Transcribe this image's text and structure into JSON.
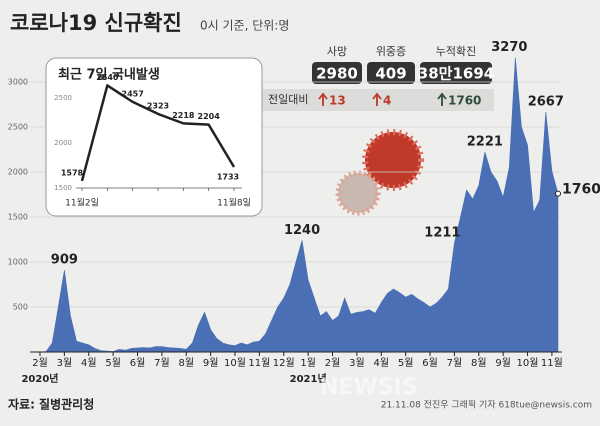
{
  "header": {
    "title": "코로나19 신규확진",
    "subtitle": "0시 기준, 단위:명"
  },
  "stats": {
    "row_label": "전일대비",
    "items": [
      {
        "label": "사망",
        "total": "2980",
        "change": "13"
      },
      {
        "label": "위중증",
        "total": "409",
        "change": "4"
      },
      {
        "label": "누적확진",
        "total": "38만1694",
        "change": "1760"
      }
    ]
  },
  "chart_data": [
    {
      "type": "area",
      "color": "#4a6fb5",
      "categories": [
        "2월",
        null,
        null,
        null,
        "3월",
        null,
        null,
        null,
        "4월",
        null,
        null,
        null,
        "5월",
        null,
        null,
        null,
        "6월",
        null,
        null,
        null,
        "7월",
        null,
        null,
        null,
        "8월",
        null,
        null,
        null,
        "9월",
        null,
        null,
        null,
        "10월",
        null,
        null,
        null,
        "11월",
        null,
        null,
        null,
        "12월",
        null,
        null,
        null,
        "1월",
        null,
        null,
        null,
        "2월",
        null,
        null,
        null,
        "3월",
        null,
        null,
        null,
        "4월",
        null,
        null,
        null,
        "5월",
        null,
        null,
        null,
        "6월",
        null,
        null,
        null,
        "7월",
        null,
        null,
        null,
        "8월",
        null,
        null,
        null,
        "9월",
        null,
        null,
        null,
        "10월",
        null,
        null,
        null,
        "11월",
        null
      ],
      "values": [
        0,
        5,
        100,
        500,
        909,
        400,
        120,
        100,
        80,
        40,
        15,
        10,
        5,
        30,
        20,
        40,
        45,
        50,
        45,
        60,
        60,
        50,
        45,
        40,
        30,
        100,
        300,
        441,
        250,
        150,
        100,
        80,
        70,
        100,
        80,
        110,
        120,
        200,
        350,
        500,
        600,
        750,
        1000,
        1240,
        800,
        600,
        400,
        450,
        350,
        400,
        600,
        420,
        440,
        450,
        470,
        430,
        550,
        650,
        700,
        660,
        610,
        640,
        590,
        550,
        500,
        540,
        610,
        700,
        1211,
        1500,
        1800,
        1700,
        1850,
        2221,
        2000,
        1900,
        1720,
        2050,
        3270,
        2500,
        2300,
        1550,
        1690,
        2667,
        2010,
        1760
      ],
      "years": [
        "2020년",
        "2021년"
      ],
      "annotations": [
        909,
        1240,
        1211,
        2221,
        3270,
        2667,
        1760
      ],
      "ylim": [
        0,
        3300
      ],
      "yticks": [
        500,
        1000,
        1500,
        2000,
        2500,
        3000
      ],
      "grid": true
    },
    {
      "type": "line",
      "title": "최근 7일 국내발생",
      "color": "#222222",
      "categories": [
        "11월2일",
        null,
        null,
        null,
        null,
        null,
        "11월8일"
      ],
      "values": [
        1578,
        2640,
        2457,
        2323,
        2218,
        2204,
        1733
      ],
      "ylim": [
        1500,
        2800
      ],
      "yticks": [
        1500,
        2000,
        2500
      ]
    }
  ],
  "footer": {
    "source": "자료: 질병관리청",
    "credit": "21.11.08 전진우 그래픽 기자 618tue@newsis.com",
    "watermark": "NEWSIS"
  }
}
